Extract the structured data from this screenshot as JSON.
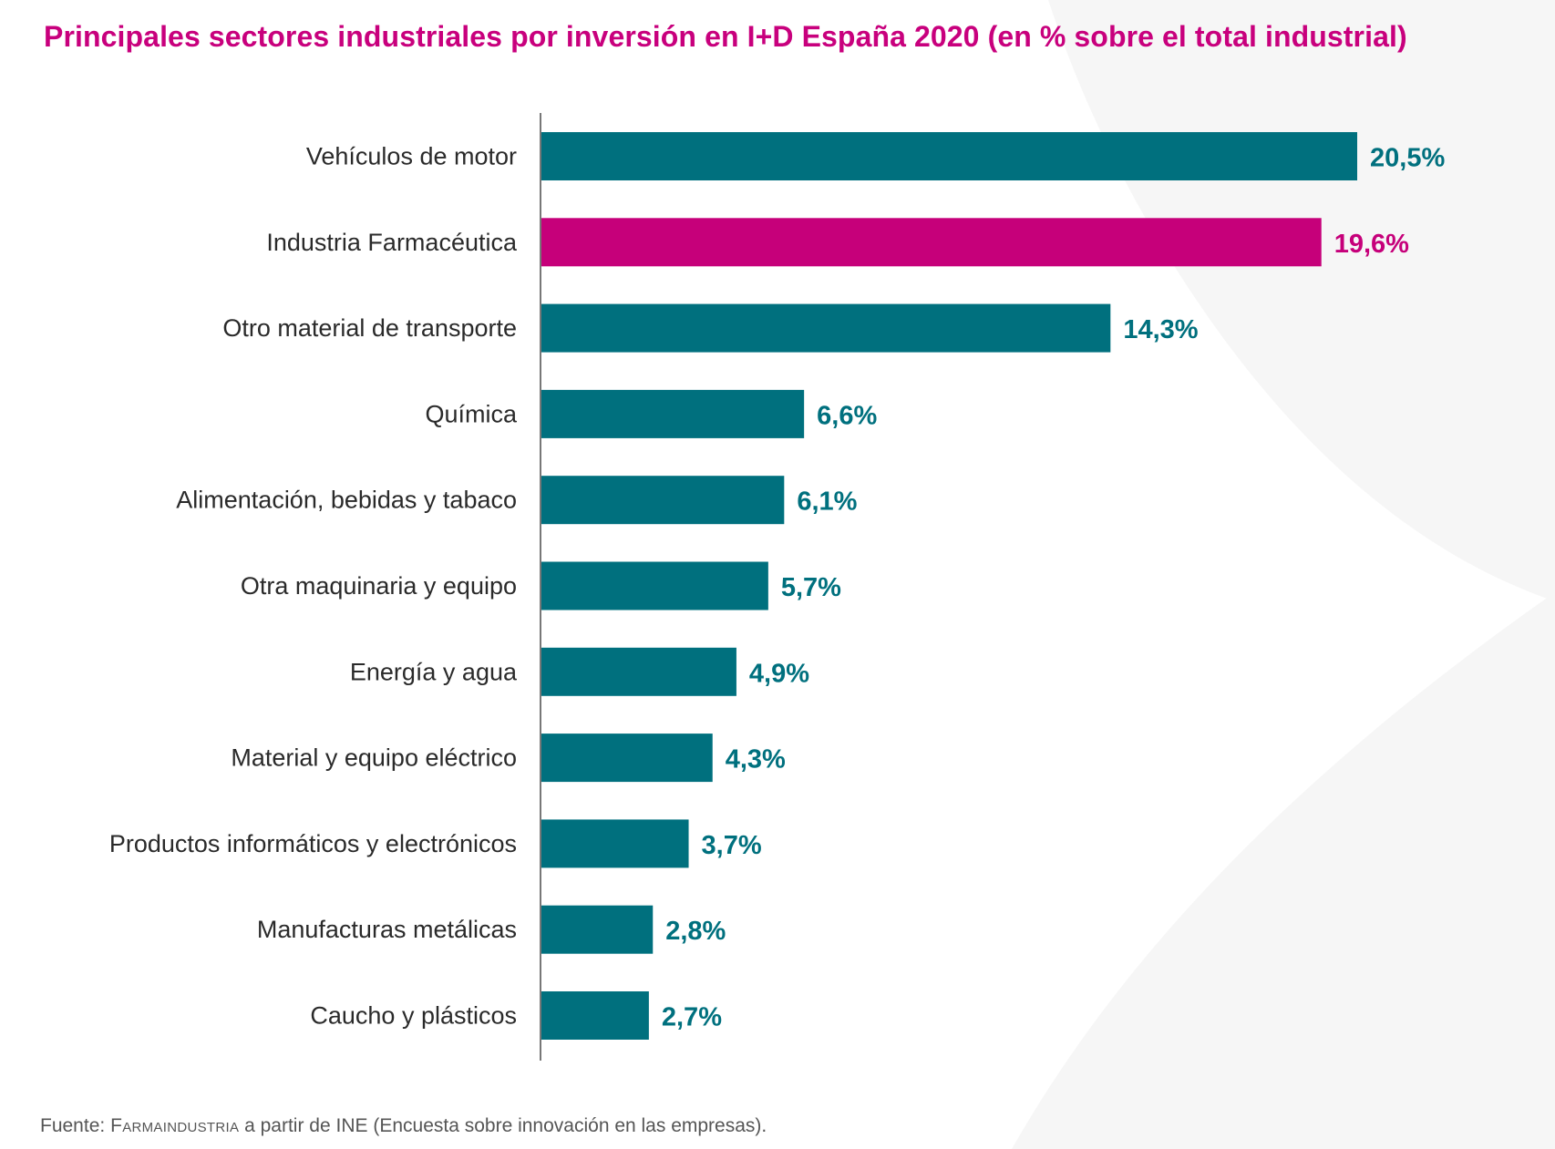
{
  "colors": {
    "default_bar": "#00707e",
    "highlight_bar": "#c6007a",
    "axis": "#777777"
  },
  "source": {
    "prefix": "Fuente:",
    "org": "Farmaindustria",
    "rest": "a partir de INE (Encuesta sobre innovación en las empresas)."
  },
  "chart_data": {
    "type": "bar",
    "orientation": "horizontal",
    "title": "Principales sectores industriales por inversión en I+D España 2020 (en % sobre el total industrial)",
    "xlabel": "",
    "ylabel": "",
    "unit": "%",
    "xlim": [
      0,
      20.5
    ],
    "grid": false,
    "legend": "none",
    "categories": [
      "Vehículos de motor",
      "Industria Farmacéutica",
      "Otro material de transporte",
      "Química",
      "Alimentación, bebidas y tabaco",
      "Otra maquinaria y equipo",
      "Energía y agua",
      "Material y equipo eléctrico",
      "Productos informáticos y electrónicos",
      "Manufacturas metálicas",
      "Caucho y plásticos"
    ],
    "values": [
      20.5,
      19.6,
      14.3,
      6.6,
      6.1,
      5.7,
      4.9,
      4.3,
      3.7,
      2.8,
      2.7
    ],
    "value_labels": [
      "20,5%",
      "19,6%",
      "14,3%",
      "6,6%",
      "6,1%",
      "5,7%",
      "4,9%",
      "4,3%",
      "3,7%",
      "2,8%",
      "2,7%"
    ],
    "highlight_category": "Industria Farmacéutica"
  }
}
